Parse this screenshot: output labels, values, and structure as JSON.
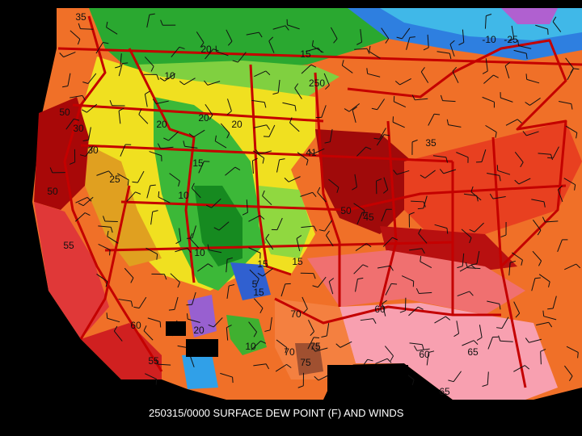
{
  "caption": "250315/0000 SURFACE DEW POINT (F) AND WINDS",
  "contour_labels": [
    "35",
    "20",
    "10",
    "15",
    "250",
    "20",
    "20",
    "20",
    "30",
    "50",
    "30",
    "25",
    "15",
    "10",
    "50",
    "55",
    "41",
    "50",
    "45",
    "15",
    "10",
    "5",
    "15",
    "15",
    "20",
    "10",
    "70",
    "75",
    "75",
    "55",
    "60",
    "60",
    "60",
    "65",
    "65",
    "-10",
    "-25",
    "35",
    "70"
  ]
}
